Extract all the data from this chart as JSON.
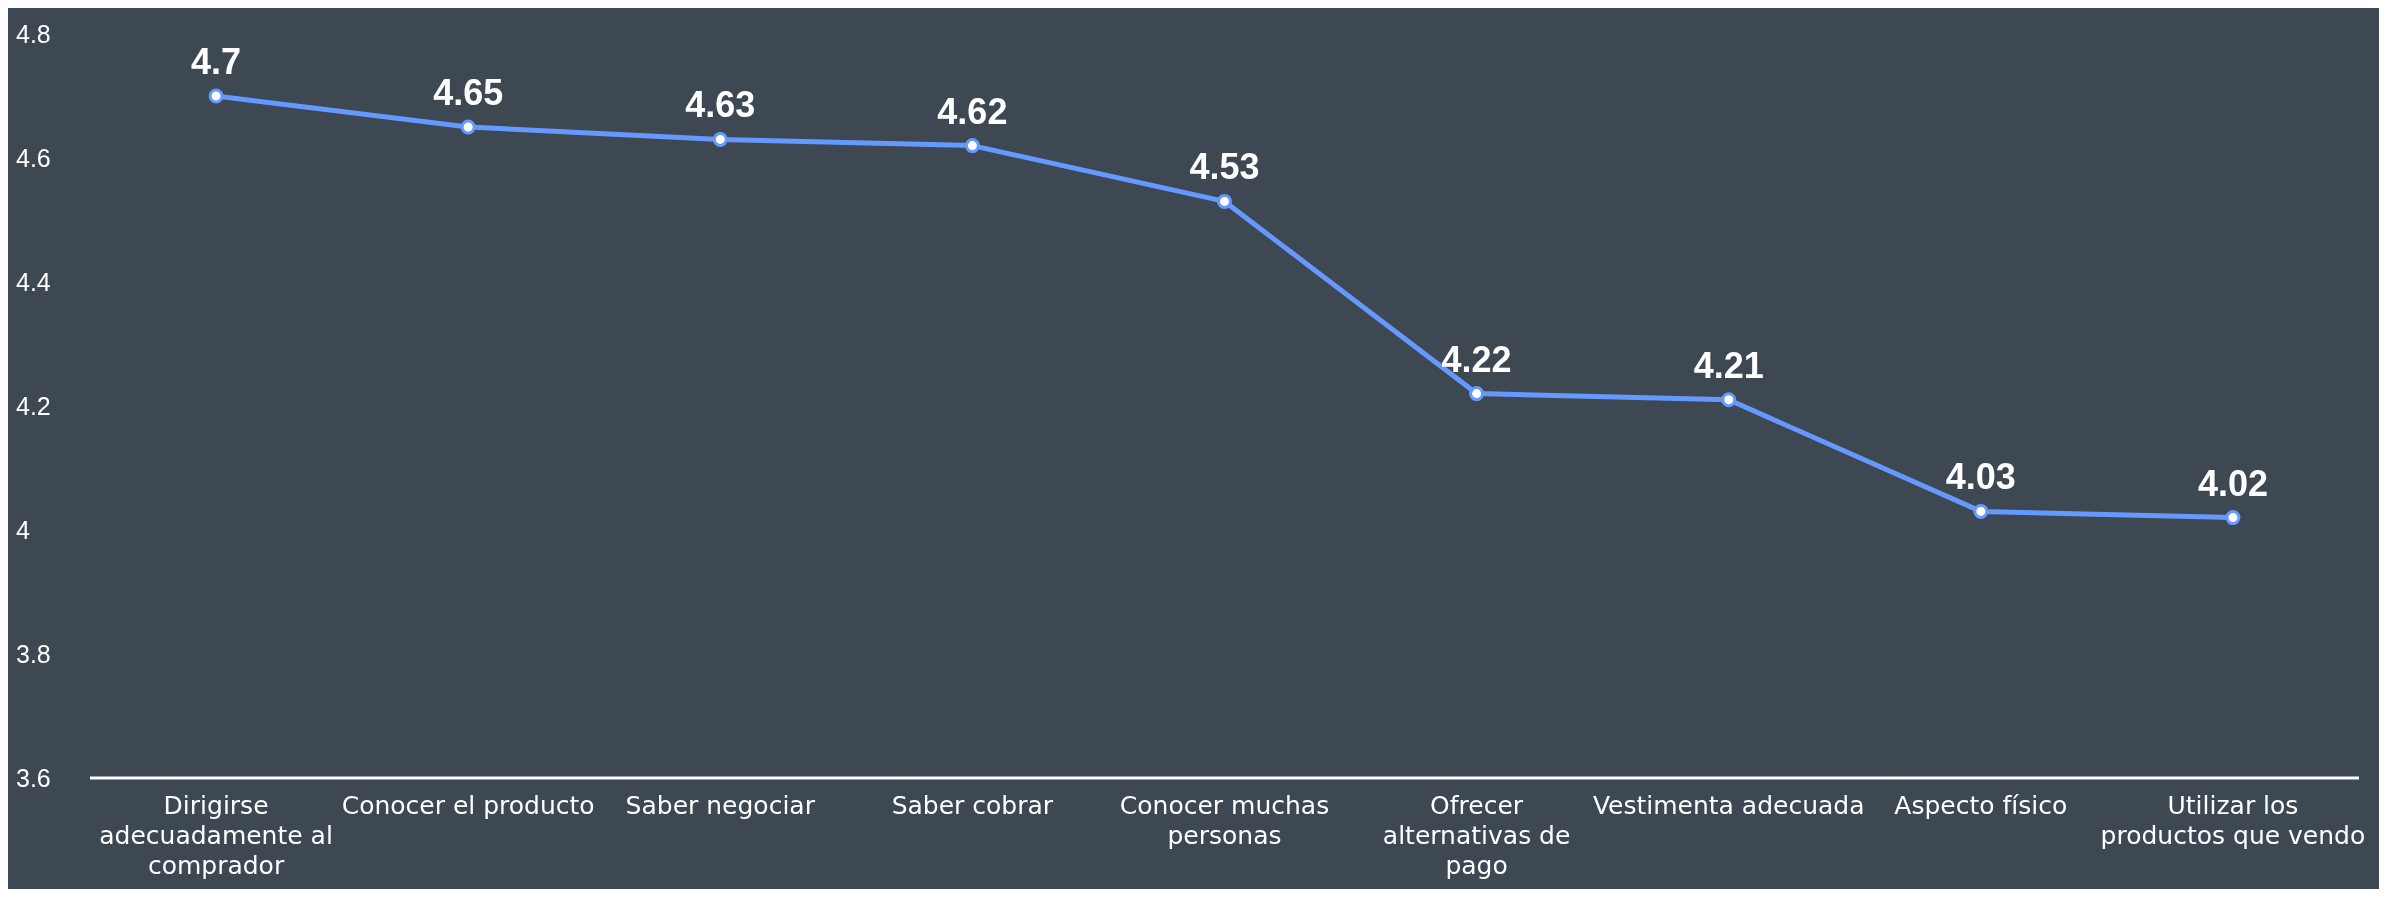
{
  "chart_data": {
    "type": "line",
    "categories": [
      "Dirigirse adecuadamente al comprador",
      "Conocer el producto",
      "Saber negociar",
      "Saber cobrar",
      "Conocer muchas personas",
      "Ofrecer alternativas de pago",
      "Vestimenta adecuada",
      "Aspecto físico",
      "Utilizar los productos que vendo"
    ],
    "series": [
      {
        "color": "#6699ff",
        "values": [
          4.7,
          4.65,
          4.63,
          4.62,
          4.53,
          4.22,
          4.21,
          4.03,
          4.02
        ]
      }
    ],
    "ylim": [
      3.6,
      4.8
    ],
    "yticks": [
      3.6,
      3.8,
      4,
      4.2,
      4.4,
      4.6,
      4.8
    ],
    "data_labels": true,
    "marker": "circle"
  }
}
